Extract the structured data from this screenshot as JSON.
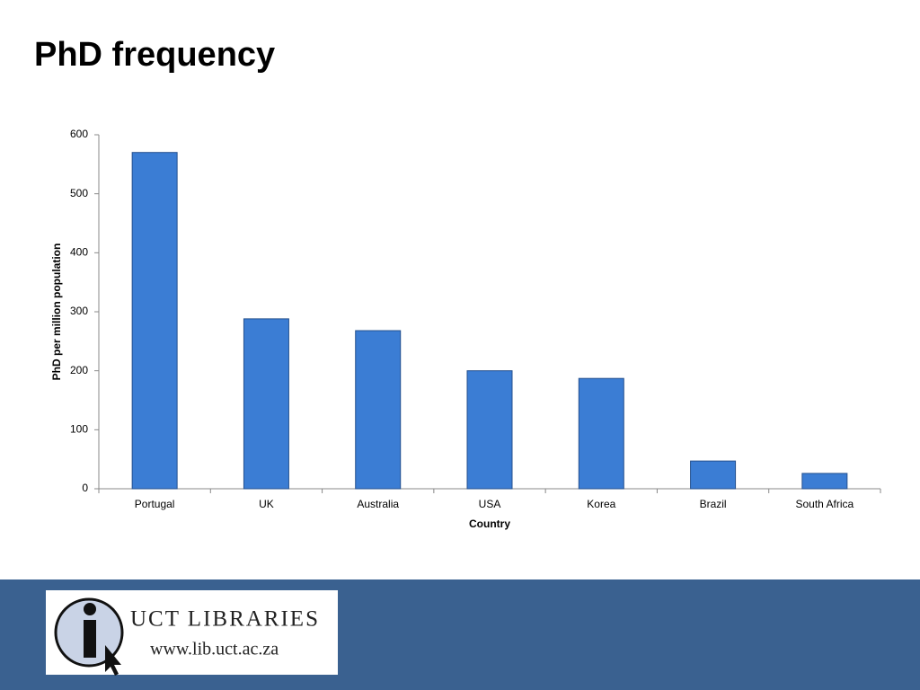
{
  "chart_data": {
    "type": "bar",
    "title": "PhD frequency",
    "x_label": "Country",
    "y_label": "PhD per million population",
    "categories": [
      "Portugal",
      "UK",
      "Australia",
      "USA",
      "Korea",
      "Brazil",
      "South Africa"
    ],
    "values": [
      570,
      288,
      268,
      200,
      187,
      47,
      26
    ],
    "color": "#3b7dd4",
    "ylim": [
      0,
      600
    ],
    "yticks": [
      0,
      100,
      200,
      300,
      400,
      500,
      600
    ],
    "grid": false
  },
  "logo": {
    "name": "UCT LIBRARIES",
    "url": "www.lib.uct.ac.za"
  }
}
